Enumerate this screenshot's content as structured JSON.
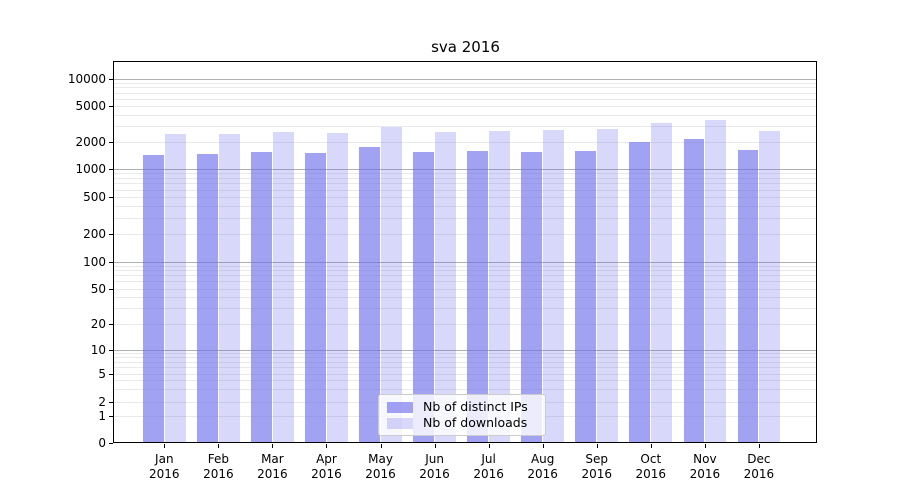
{
  "chart_data": {
    "type": "bar",
    "title": "sva 2016",
    "scale": "symlog",
    "grid": true,
    "legend_position": "lower center",
    "ylim": [
      0,
      15000
    ],
    "yticks": [
      0,
      1,
      2,
      5,
      10,
      20,
      50,
      100,
      200,
      500,
      1000,
      2000,
      5000,
      10000
    ],
    "categories": [
      "Jan",
      "Feb",
      "Mar",
      "Apr",
      "May",
      "Jun",
      "Jul",
      "Aug",
      "Sep",
      "Oct",
      "Nov",
      "Dec"
    ],
    "year": "2016",
    "series": [
      {
        "name": "Nb of distinct IPs",
        "key": "distinct-ips",
        "color": "rgba(105,105,235,0.62)",
        "values": [
          1400,
          1460,
          1540,
          1500,
          1730,
          1520,
          1570,
          1540,
          1580,
          1960,
          2150,
          1610
        ]
      },
      {
        "name": "Nb of downloads",
        "key": "downloads",
        "color": "rgba(105,105,235,0.26)",
        "values": [
          2400,
          2420,
          2560,
          2470,
          2910,
          2540,
          2620,
          2670,
          2740,
          3200,
          3480,
          2620
        ]
      }
    ],
    "colors": {
      "major_grid": "#b0b0b0",
      "minor_grid": "#e9e9e9",
      "spine": "#000000"
    }
  }
}
